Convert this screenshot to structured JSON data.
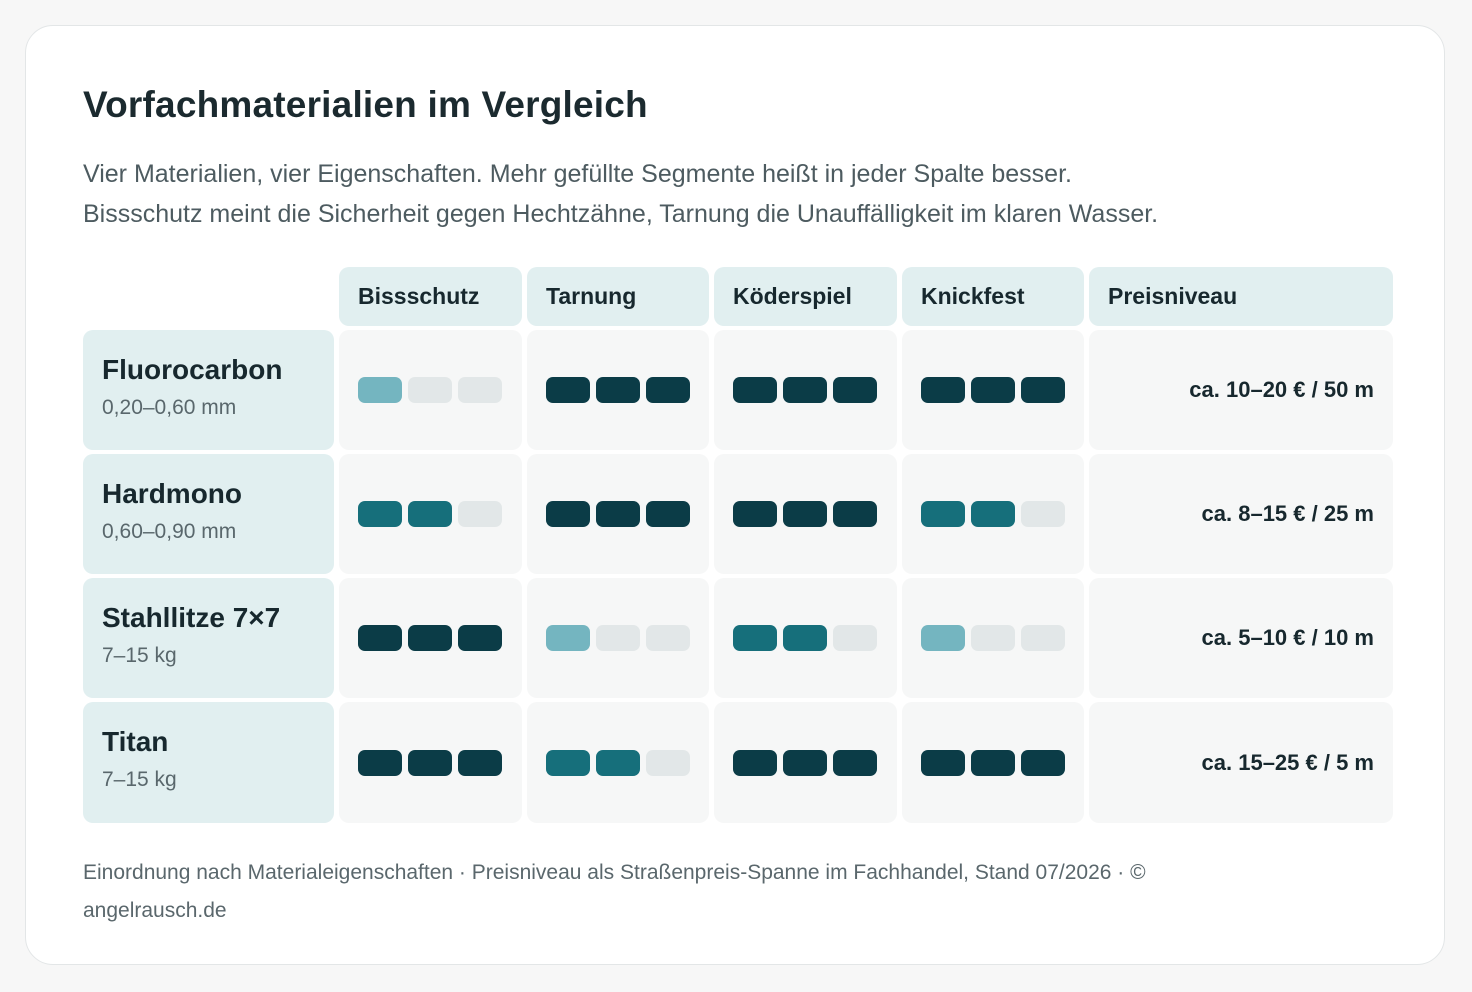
{
  "title": "Vorfachmaterialien im Vergleich",
  "subtitle_lines": [
    "Vier Materialien, vier Eigenschaften. Mehr gefüllte Segmente heißt in jeder Spalte besser.",
    "Bissschutz meint die Sicherheit gegen Hechtzähne, Tarnung die Unauffälligkeit im klaren Wasser."
  ],
  "footer": "Einordnung nach Materialeigenschaften · Preisniveau als Straßenpreis-Spanne im Fachhandel, Stand 07/2026 · © angelrausch.de",
  "colors": {
    "level_1": "#74b5c0",
    "level_2": "#166f7b",
    "level_3": "#0b3c47",
    "empty": "#e2e7e8"
  },
  "chart_data": {
    "type": "table",
    "max_segments": 3,
    "columns": [
      "Bissschutz",
      "Tarnung",
      "Köderspiel",
      "Knickfest",
      "Preisniveau"
    ],
    "rows": [
      {
        "name": "Fluorocarbon",
        "spec": "0,20–0,60 mm",
        "ratings": [
          1,
          3,
          3,
          3
        ],
        "price": "ca. 10–20 € / 50 m"
      },
      {
        "name": "Hardmono",
        "spec": "0,60–0,90 mm",
        "ratings": [
          2,
          3,
          3,
          2
        ],
        "price": "ca. 8–15 € / 25 m"
      },
      {
        "name": "Stahllitze 7×7",
        "spec": "7–15 kg",
        "ratings": [
          3,
          1,
          2,
          1
        ],
        "price": "ca. 5–10 € / 10 m"
      },
      {
        "name": "Titan",
        "spec": "7–15 kg",
        "ratings": [
          3,
          2,
          3,
          3
        ],
        "price": "ca. 15–25 € / 5 m"
      }
    ]
  }
}
